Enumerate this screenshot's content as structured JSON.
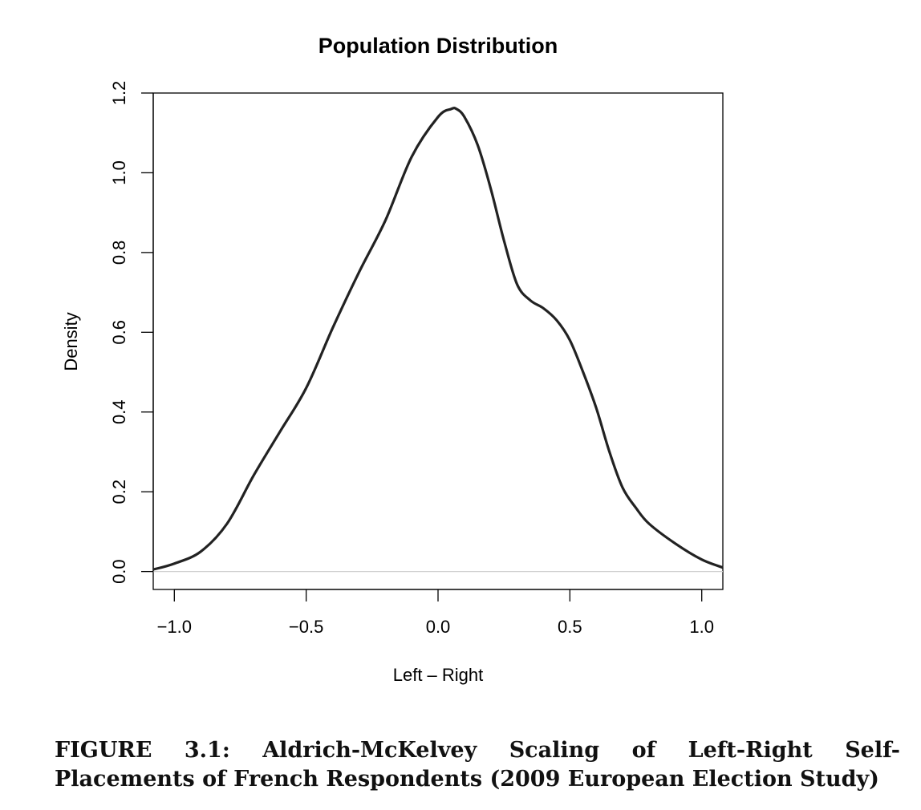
{
  "chart_data": {
    "type": "line",
    "title": "Population Distribution",
    "xlabel": "Left – Right",
    "ylabel": "Density",
    "xlim": [
      -1.08,
      1.08
    ],
    "ylim": [
      -0.045,
      1.2
    ],
    "xticks": [
      "−1.0",
      "−0.5",
      "0.0",
      "0.5",
      "1.0"
    ],
    "yticks": [
      "0.0",
      "0.2",
      "0.4",
      "0.6",
      "0.8",
      "1.0",
      "1.2"
    ],
    "zero_line": true,
    "series": [
      {
        "x": [
          -1.08,
          -1.0,
          -0.9,
          -0.8,
          -0.7,
          -0.6,
          -0.5,
          -0.4,
          -0.3,
          -0.2,
          -0.1,
          0.0,
          0.05,
          0.07,
          0.1,
          0.15,
          0.2,
          0.25,
          0.3,
          0.35,
          0.4,
          0.45,
          0.5,
          0.55,
          0.6,
          0.65,
          0.7,
          0.75,
          0.8,
          0.9,
          1.0,
          1.08
        ],
        "y": [
          0.005,
          0.02,
          0.05,
          0.12,
          0.24,
          0.35,
          0.46,
          0.61,
          0.75,
          0.88,
          1.04,
          1.14,
          1.16,
          1.16,
          1.14,
          1.07,
          0.96,
          0.83,
          0.72,
          0.68,
          0.66,
          0.63,
          0.58,
          0.5,
          0.41,
          0.3,
          0.21,
          0.16,
          0.12,
          0.07,
          0.03,
          0.01
        ],
        "color": "#222222"
      }
    ]
  },
  "caption": {
    "line1": [
      "FIGURE",
      "3.1:",
      "Aldrich-McKelvey",
      "Scaling",
      "of",
      "Left-Right",
      "Self-"
    ],
    "line2": "Placements of French Respondents (2009 European Election Study)"
  }
}
